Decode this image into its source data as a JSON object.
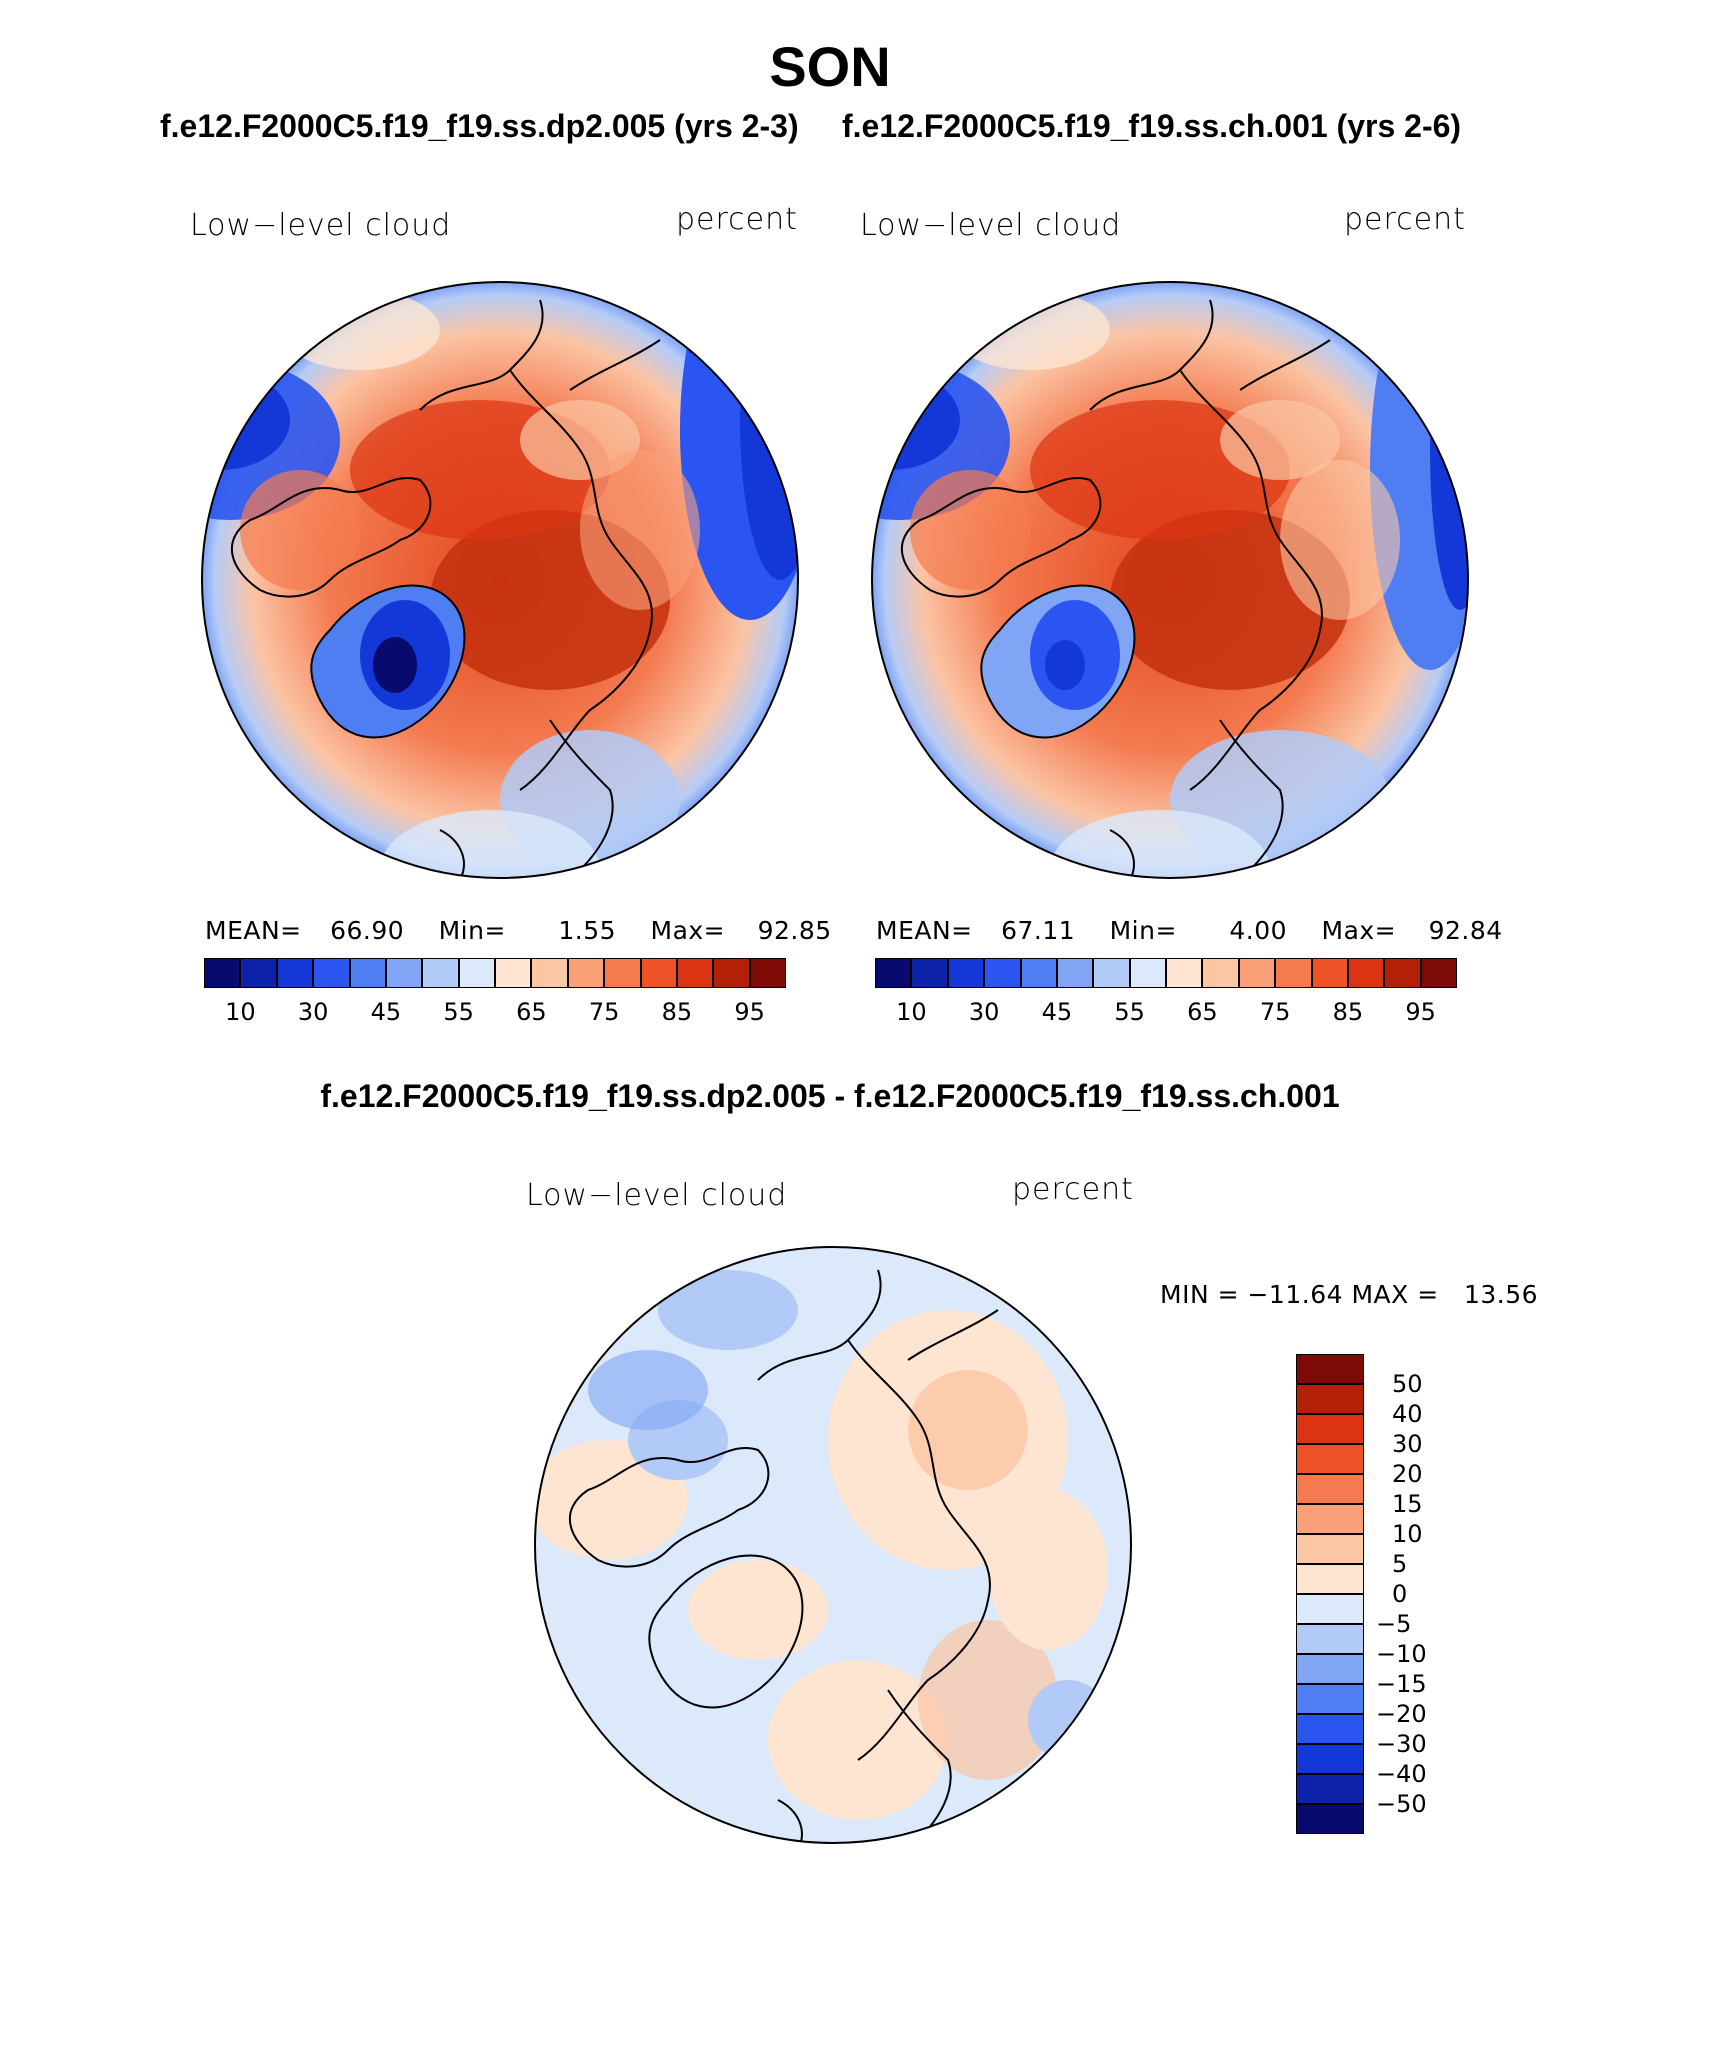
{
  "title": "SON",
  "panels": [
    {
      "case_label": "f.e12.F2000C5.f19_f19.ss.dp2.005 (yrs 2-3)",
      "variable": "Low−level cloud",
      "units": "percent",
      "mean_label": "MEAN=",
      "mean": "66.90",
      "min_label": "Min=",
      "min": "1.55",
      "max_label": "Max=",
      "max": "92.85"
    },
    {
      "case_label": "f.e12.F2000C5.f19_f19.ss.ch.001 (yrs 2-6)",
      "variable": "Low−level cloud",
      "units": "percent",
      "mean_label": "MEAN=",
      "mean": "67.11",
      "min_label": "Min=",
      "min": "4.00",
      "max_label": "Max=",
      "max": "92.84"
    }
  ],
  "difference": {
    "title": "f.e12.F2000C5.f19_f19.ss.dp2.005 - f.e12.F2000C5.f19_f19.ss.ch.001",
    "variable": "Low−level cloud",
    "units": "percent",
    "minmax": "MIN = −11.64 MAX =   13.56"
  },
  "colorbar_levels": [
    "10",
    "30",
    "45",
    "55",
    "65",
    "75",
    "85",
    "95"
  ],
  "colorbar_colors": [
    "#080a6e",
    "#0c22a8",
    "#1438d8",
    "#2a55f0",
    "#4f7ef2",
    "#7fa5f4",
    "#b2caf7",
    "#dbe9fb",
    "#fde5d2",
    "#fbc6a4",
    "#f9a079",
    "#f57a4f",
    "#ee5228",
    "#db3412",
    "#b32008",
    "#7d0a04"
  ],
  "diff_levels": [
    "50",
    "40",
    "30",
    "20",
    "15",
    "10",
    "5",
    "0",
    "−5",
    "−10",
    "−15",
    "−20",
    "−30",
    "−40",
    "−50"
  ],
  "diff_colors": [
    "#7d0a04",
    "#b32008",
    "#db3412",
    "#ee5228",
    "#f57a4f",
    "#f9a079",
    "#fbc6a4",
    "#fde5d2",
    "#dbe9fb",
    "#b2caf7",
    "#7fa5f4",
    "#4f7ef2",
    "#2a55f0",
    "#1438d8",
    "#0c22a8",
    "#080a6e"
  ]
}
